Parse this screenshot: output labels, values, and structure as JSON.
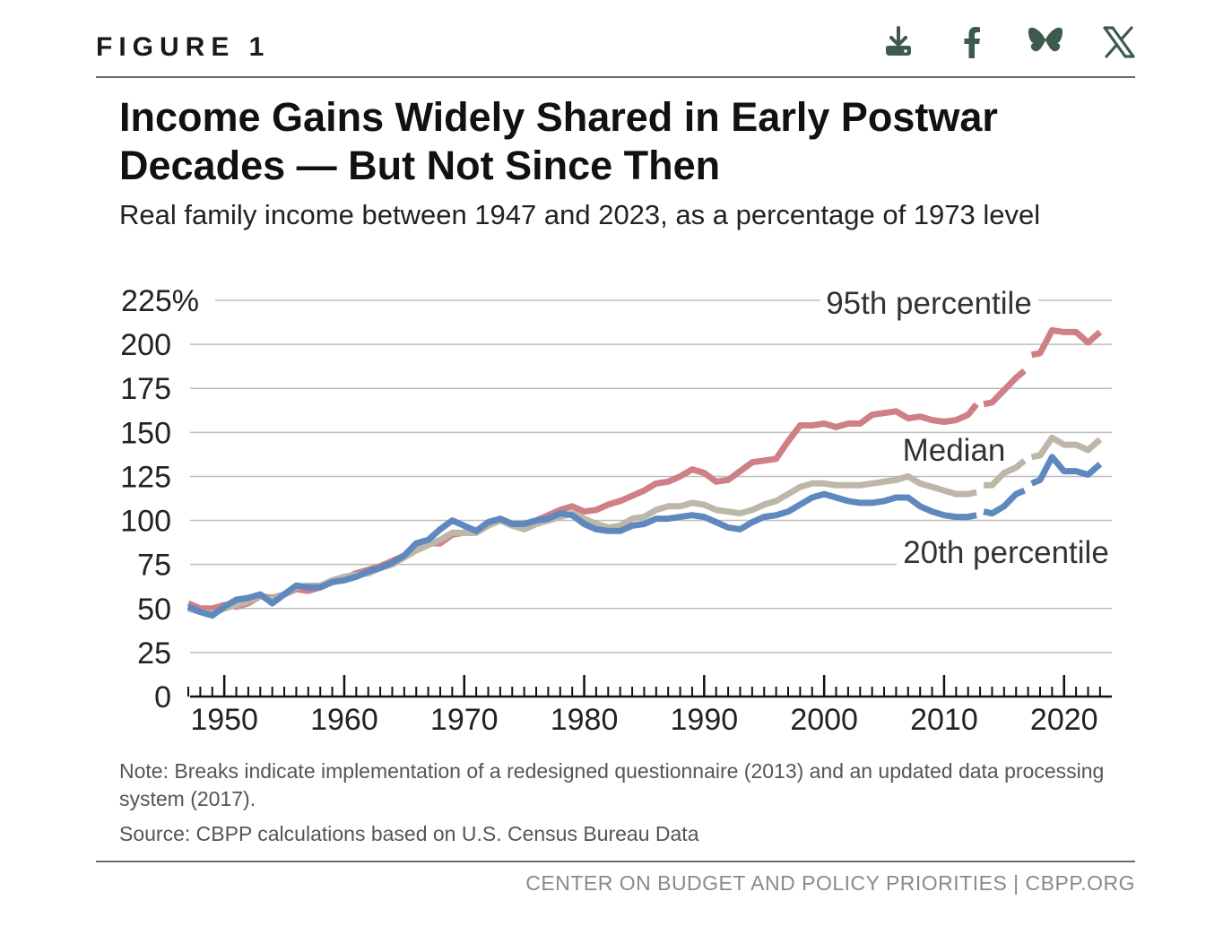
{
  "figure_label": "FIGURE 1",
  "share": {
    "download_icon": "download-icon",
    "facebook_icon": "facebook-icon",
    "bluesky_icon": "bluesky-icon",
    "x_icon": "x-icon"
  },
  "note": "Note: Breaks indicate implementation of a redesigned questionnaire (2013) and an updated data processing system (2017).",
  "source": "Source: CBPP calculations based on U.S. Census Bureau Data",
  "footer": "CENTER ON BUDGET AND POLICY PRIORITIES | CBPP.ORG",
  "colors": {
    "p95": "#cf7f86",
    "median": "#bdb7a8",
    "p20": "#5f88bf",
    "grid": "#bdbdbd",
    "axis": "#111111"
  },
  "chart_data": {
    "type": "line",
    "title": "Income Gains Widely Shared in Early Postwar Decades — But Not Since Then",
    "subtitle": "Real family income between 1947 and 2023, as a percentage of 1973 level",
    "xlabel": "",
    "ylabel": "",
    "xlim": [
      1947,
      2023
    ],
    "ylim": [
      0,
      225
    ],
    "x_ticks": [
      1950,
      1960,
      1970,
      1980,
      1990,
      2000,
      2010,
      2020
    ],
    "y_ticks": [
      0,
      25,
      50,
      75,
      100,
      125,
      150,
      175,
      200,
      225
    ],
    "y_tick_labels": [
      "0",
      "25",
      "50",
      "75",
      "100",
      "125",
      "150",
      "175",
      "200",
      "225%"
    ],
    "breaks": [
      2013,
      2017
    ],
    "grid": true,
    "series": [
      {
        "name": "95th percentile",
        "key": "p95",
        "x": [
          1947,
          1948,
          1949,
          1950,
          1951,
          1952,
          1953,
          1954,
          1955,
          1956,
          1957,
          1958,
          1959,
          1960,
          1961,
          1962,
          1963,
          1964,
          1965,
          1966,
          1967,
          1968,
          1969,
          1970,
          1971,
          1972,
          1973,
          1974,
          1975,
          1976,
          1977,
          1978,
          1979,
          1980,
          1981,
          1982,
          1983,
          1984,
          1985,
          1986,
          1987,
          1988,
          1989,
          1990,
          1991,
          1992,
          1993,
          1994,
          1995,
          1996,
          1997,
          1998,
          1999,
          2000,
          2001,
          2002,
          2003,
          2004,
          2005,
          2006,
          2007,
          2008,
          2009,
          2010,
          2011,
          2012,
          2013,
          2013,
          2014,
          2015,
          2016,
          2017,
          2017,
          2018,
          2019,
          2020,
          2021,
          2022,
          2023
        ],
        "values": [
          53,
          50,
          50,
          52,
          51,
          53,
          57,
          56,
          58,
          61,
          60,
          62,
          65,
          67,
          70,
          72,
          74,
          77,
          80,
          85,
          87,
          87,
          92,
          93,
          93,
          98,
          100,
          98,
          98,
          100,
          103,
          106,
          108,
          105,
          106,
          109,
          111,
          114,
          117,
          121,
          122,
          125,
          129,
          127,
          122,
          123,
          128,
          133,
          134,
          135,
          145,
          154,
          154,
          155,
          153,
          155,
          155,
          160,
          161,
          162,
          158,
          159,
          157,
          156,
          157,
          160,
          166,
          166,
          167,
          174,
          181,
          185,
          194,
          195,
          208,
          207,
          207,
          201,
          207
        ]
      },
      {
        "name": "Median",
        "key": "median",
        "x": [
          1947,
          1948,
          1949,
          1950,
          1951,
          1952,
          1953,
          1954,
          1955,
          1956,
          1957,
          1958,
          1959,
          1960,
          1961,
          1962,
          1963,
          1964,
          1965,
          1966,
          1967,
          1968,
          1969,
          1970,
          1971,
          1972,
          1973,
          1974,
          1975,
          1976,
          1977,
          1978,
          1979,
          1980,
          1981,
          1982,
          1983,
          1984,
          1985,
          1986,
          1987,
          1988,
          1989,
          1990,
          1991,
          1992,
          1993,
          1994,
          1995,
          1996,
          1997,
          1998,
          1999,
          2000,
          2001,
          2002,
          2003,
          2004,
          2005,
          2006,
          2007,
          2008,
          2009,
          2010,
          2011,
          2012,
          2013,
          2013,
          2014,
          2015,
          2016,
          2017,
          2017,
          2018,
          2019,
          2020,
          2021,
          2022,
          2023
        ],
        "values": [
          50,
          48,
          47,
          50,
          52,
          54,
          57,
          55,
          58,
          62,
          63,
          63,
          66,
          68,
          69,
          70,
          73,
          75,
          79,
          83,
          86,
          89,
          93,
          93,
          93,
          97,
          100,
          97,
          95,
          98,
          100,
          102,
          104,
          101,
          98,
          96,
          97,
          101,
          102,
          106,
          108,
          108,
          110,
          109,
          106,
          105,
          104,
          106,
          109,
          111,
          115,
          119,
          121,
          121,
          120,
          120,
          120,
          121,
          122,
          123,
          125,
          121,
          119,
          117,
          115,
          115,
          116,
          120,
          120,
          127,
          130,
          134,
          136,
          137,
          147,
          143,
          143,
          140,
          146
        ]
      },
      {
        "name": "20th percentile",
        "key": "p20",
        "x": [
          1947,
          1948,
          1949,
          1950,
          1951,
          1952,
          1953,
          1954,
          1955,
          1956,
          1957,
          1958,
          1959,
          1960,
          1961,
          1962,
          1963,
          1964,
          1965,
          1966,
          1967,
          1968,
          1969,
          1970,
          1971,
          1972,
          1973,
          1974,
          1975,
          1976,
          1977,
          1978,
          1979,
          1980,
          1981,
          1982,
          1983,
          1984,
          1985,
          1986,
          1987,
          1988,
          1989,
          1990,
          1991,
          1992,
          1993,
          1994,
          1995,
          1996,
          1997,
          1998,
          1999,
          2000,
          2001,
          2002,
          2003,
          2004,
          2005,
          2006,
          2007,
          2008,
          2009,
          2010,
          2011,
          2012,
          2013,
          2013,
          2014,
          2015,
          2016,
          2017,
          2017,
          2018,
          2019,
          2020,
          2021,
          2022,
          2023
        ],
        "values": [
          51,
          48,
          46,
          51,
          55,
          56,
          58,
          53,
          58,
          63,
          62,
          62,
          65,
          66,
          68,
          71,
          73,
          76,
          80,
          87,
          89,
          95,
          100,
          97,
          94,
          99,
          101,
          98,
          98,
          100,
          101,
          104,
          103,
          98,
          95,
          94,
          94,
          97,
          98,
          101,
          101,
          102,
          103,
          102,
          99,
          96,
          95,
          99,
          102,
          103,
          105,
          109,
          113,
          115,
          113,
          111,
          110,
          110,
          111,
          113,
          113,
          108,
          105,
          103,
          102,
          102,
          103,
          105,
          104,
          108,
          115,
          117,
          121,
          123,
          136,
          128,
          128,
          126,
          132
        ]
      }
    ],
    "annotations": [
      {
        "text": "95th percentile",
        "series": "p95"
      },
      {
        "text": "Median",
        "series": "median"
      },
      {
        "text": "20th percentile",
        "series": "p20"
      }
    ]
  }
}
